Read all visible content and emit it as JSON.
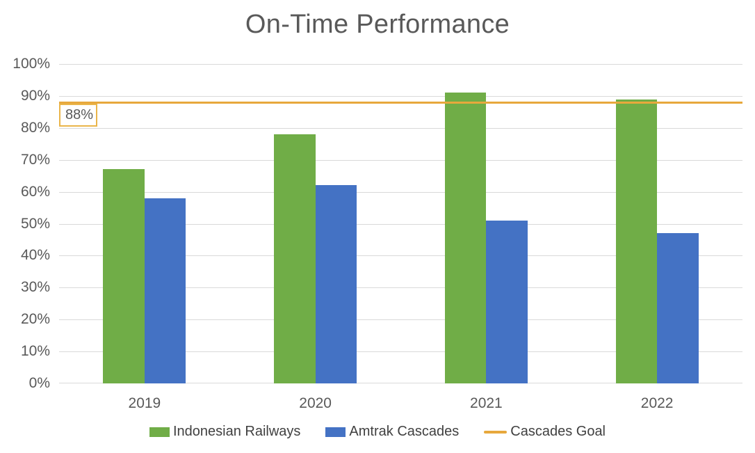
{
  "chart_data": {
    "type": "bar",
    "title": "On-Time Performance",
    "categories": [
      "2019",
      "2020",
      "2021",
      "2022"
    ],
    "series": [
      {
        "name": "Indonesian Railways",
        "color": "#70AD47",
        "values": [
          67,
          78,
          91,
          89
        ]
      },
      {
        "name": "Amtrak Cascades",
        "color": "#4472C4",
        "values": [
          58,
          62,
          51,
          47
        ]
      }
    ],
    "goal_line": {
      "name": "Cascades Goal",
      "value": 88,
      "label": "88%",
      "color": "#E7A83C"
    },
    "y_ticks": [
      "100%",
      "90%",
      "80%",
      "70%",
      "60%",
      "50%",
      "40%",
      "30%",
      "20%",
      "10%",
      "0%"
    ],
    "xlabel": "",
    "ylabel": "",
    "ylim": [
      0,
      100
    ],
    "grid": true,
    "legend_position": "bottom"
  },
  "colors": {
    "gridline": "#D9D9D9",
    "axis_text": "#595959",
    "title_text": "#595959",
    "legend_text": "#404040",
    "goal_label_border": "#EAB54A",
    "background": "#FFFFFF"
  },
  "legend": [
    {
      "label": "Indonesian Railways",
      "swatch": "square",
      "color": "#70AD47"
    },
    {
      "label": "Amtrak Cascades",
      "swatch": "square",
      "color": "#4472C4"
    },
    {
      "label": "Cascades Goal",
      "swatch": "line",
      "color": "#E7A83C"
    }
  ]
}
